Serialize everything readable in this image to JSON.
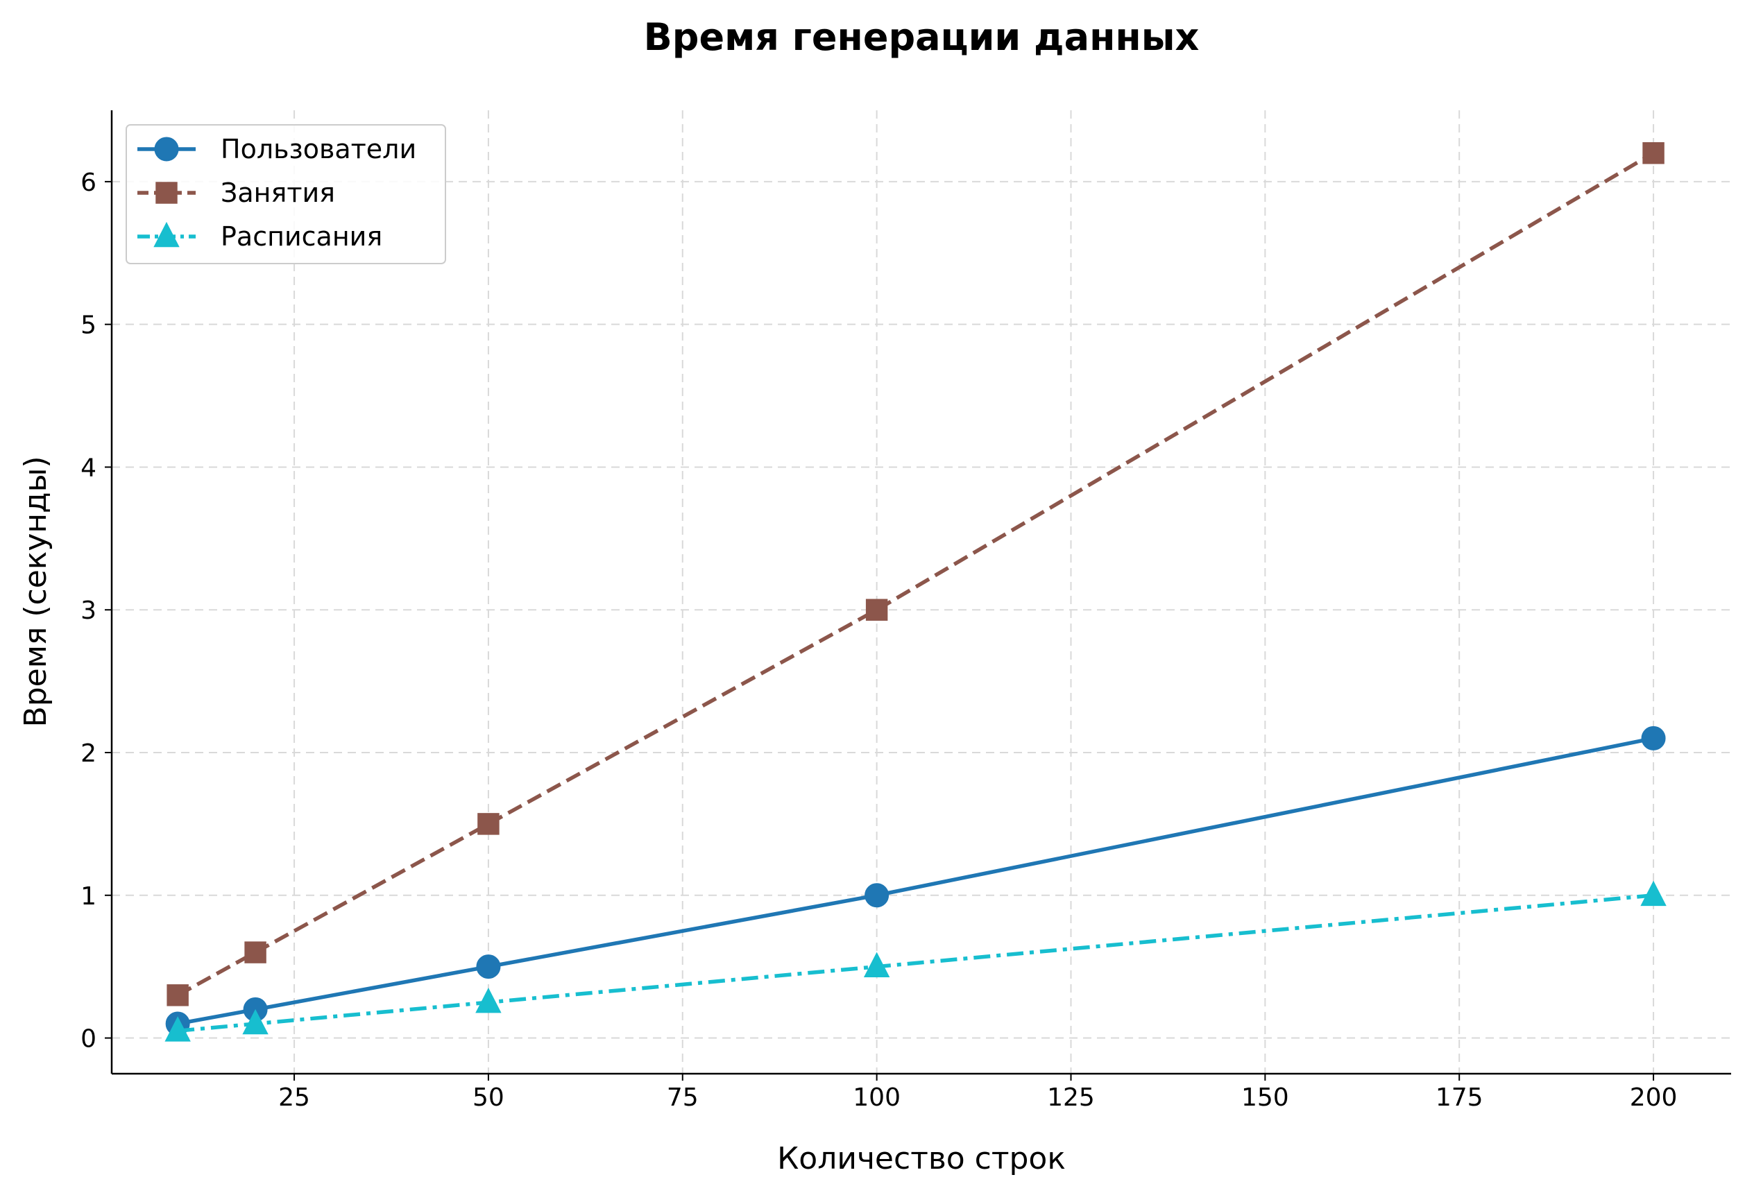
{
  "chart_data": {
    "type": "line",
    "title": "Время генерации данных",
    "xlabel": "Количество строк",
    "ylabel": "Время (секунды)",
    "x": [
      10,
      20,
      50,
      100,
      200
    ],
    "xlim": [
      1.5,
      210
    ],
    "ylim": [
      -0.25,
      6.5
    ],
    "xticks": [
      25,
      50,
      75,
      100,
      125,
      150,
      175,
      200
    ],
    "yticks": [
      0,
      1,
      2,
      3,
      4,
      5,
      6
    ],
    "grid": true,
    "legend_position": "top-left",
    "series": [
      {
        "name": "Пользователи",
        "values": [
          0.1,
          0.2,
          0.5,
          1.0,
          2.1
        ],
        "color": "#1f77b4",
        "line_style": "solid",
        "marker": "circle"
      },
      {
        "name": "Занятия",
        "values": [
          0.3,
          0.6,
          1.5,
          3.0,
          6.2
        ],
        "color": "#8c564b",
        "line_style": "dashed",
        "marker": "square"
      },
      {
        "name": "Расписания",
        "values": [
          0.05,
          0.1,
          0.25,
          0.5,
          1.0
        ],
        "color": "#17becf",
        "line_style": "dashdot",
        "marker": "triangle"
      }
    ]
  }
}
